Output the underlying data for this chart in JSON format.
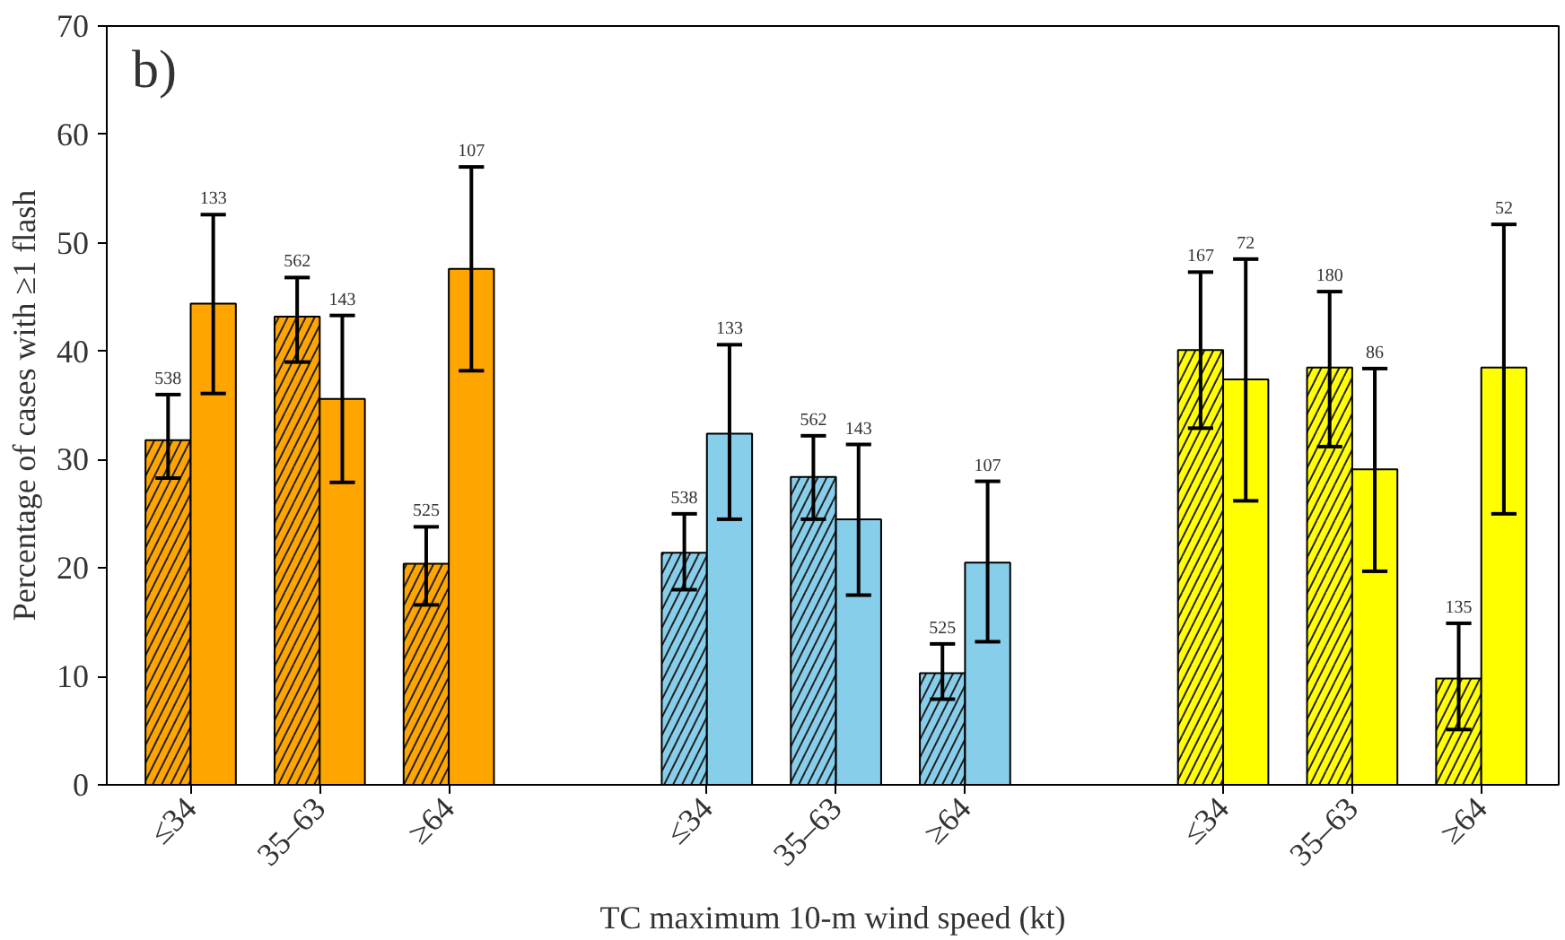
{
  "chart_data": {
    "type": "bar",
    "annotations": [
      "b)",
      "538",
      "133",
      "562",
      "143",
      "525",
      "107",
      "538",
      "133",
      "562",
      "143",
      "525",
      "107",
      "167",
      "72",
      "180",
      "86",
      "135",
      "52"
    ],
    "xlabel": "TC maximum 10-m wind speed (kt)",
    "ylabel": "Percentage of cases with ≥1 flash",
    "categories": [
      "≤34",
      "35–63",
      "≥64",
      null,
      "≤34",
      "35–63",
      "≥64",
      null,
      "≤34",
      "35–63",
      "≥64"
    ],
    "ylim": [
      0,
      70
    ],
    "yticks": [
      0,
      10,
      20,
      30,
      40,
      50,
      60,
      70
    ],
    "grid": false,
    "series": [
      {
        "colors": [
          "#ffa500",
          "#ffa500",
          "#ffa500",
          null,
          "#87ceeb",
          "#87ceeb",
          "#87ceeb",
          null,
          "#ffff00",
          "#ffff00",
          "#ffff00"
        ],
        "values": [
          31.8,
          43.2,
          20.4,
          null,
          21.4,
          28.4,
          10.3,
          null,
          40.1,
          38.5,
          9.8
        ],
        "errors": [
          [
            28.3,
            36
          ],
          [
            39,
            46.8
          ],
          [
            16.6,
            23.8
          ],
          null,
          [
            18,
            25
          ],
          [
            24.5,
            32.2
          ],
          [
            7.9,
            13
          ],
          null,
          [
            32.9,
            47.3
          ],
          [
            31.2,
            45.5
          ],
          [
            5.1,
            14.9
          ]
        ]
      },
      {
        "colors": [
          "#ffa500",
          "#ffa500",
          "#ffa500",
          null,
          "#87ceeb",
          "#87ceeb",
          "#87ceeb",
          null,
          "#ffff00",
          "#ffff00",
          "#ffff00"
        ],
        "values": [
          44.4,
          35.6,
          47.6,
          null,
          32.4,
          24.5,
          20.5,
          null,
          37.4,
          29.1,
          38.5
        ],
        "errors": [
          [
            36.1,
            52.6
          ],
          [
            27.9,
            43.3
          ],
          [
            38.2,
            57
          ],
          null,
          [
            24.5,
            40.6
          ],
          [
            17.5,
            31.4
          ],
          [
            13.2,
            28
          ],
          null,
          [
            26.2,
            48.5
          ],
          [
            19.7,
            38.4
          ],
          [
            25,
            51.7
          ]
        ]
      }
    ]
  }
}
